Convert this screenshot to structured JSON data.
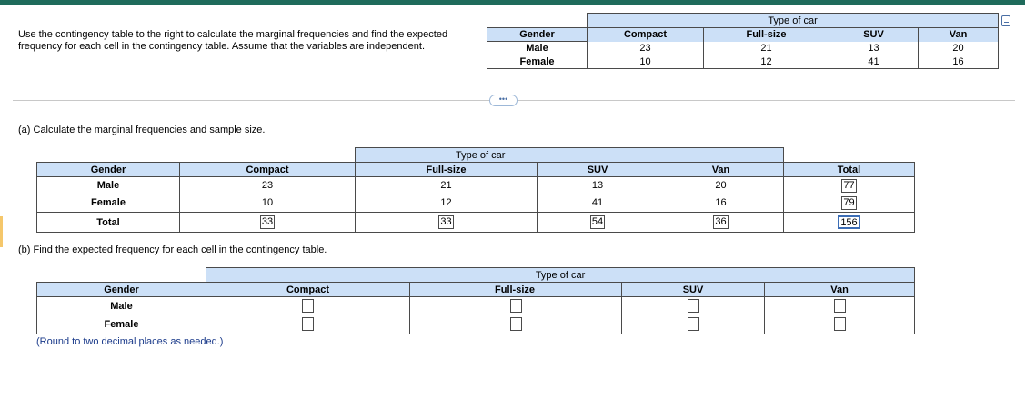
{
  "instructions": "Use the contingency table to the right to calculate the marginal frequencies and find the expected frequency for each cell in the contingency table. Assume that the variables are independent.",
  "reference_table": {
    "group_header": "Type of car",
    "row_header": "Gender",
    "columns": [
      "Compact",
      "Full-size",
      "SUV",
      "Van"
    ],
    "rows": [
      {
        "label": "Male",
        "values": [
          "23",
          "21",
          "13",
          "20"
        ]
      },
      {
        "label": "Female",
        "values": [
          "10",
          "12",
          "41",
          "16"
        ]
      }
    ]
  },
  "more_button": "•••",
  "part_a": {
    "label": "(a) Calculate the marginal frequencies and sample size.",
    "group_header": "Type of car",
    "row_header": "Gender",
    "columns": [
      "Compact",
      "Full-size",
      "SUV",
      "Van",
      "Total"
    ],
    "rows": [
      {
        "label": "Male",
        "values": [
          "23",
          "21",
          "13",
          "20"
        ],
        "total": "77"
      },
      {
        "label": "Female",
        "values": [
          "10",
          "12",
          "41",
          "16"
        ],
        "total": "79"
      }
    ],
    "total_row": {
      "label": "Total",
      "values": [
        "33",
        "33",
        "54",
        "36"
      ],
      "grand_total": "156"
    }
  },
  "part_b": {
    "label": "(b) Find the expected frequency for each cell in the contingency table.",
    "group_header": "Type of car",
    "row_header": "Gender",
    "columns": [
      "Compact",
      "Full-size",
      "SUV",
      "Van"
    ],
    "rows": [
      {
        "label": "Male"
      },
      {
        "label": "Female"
      }
    ],
    "note": "(Round to two decimal places as needed.)"
  }
}
